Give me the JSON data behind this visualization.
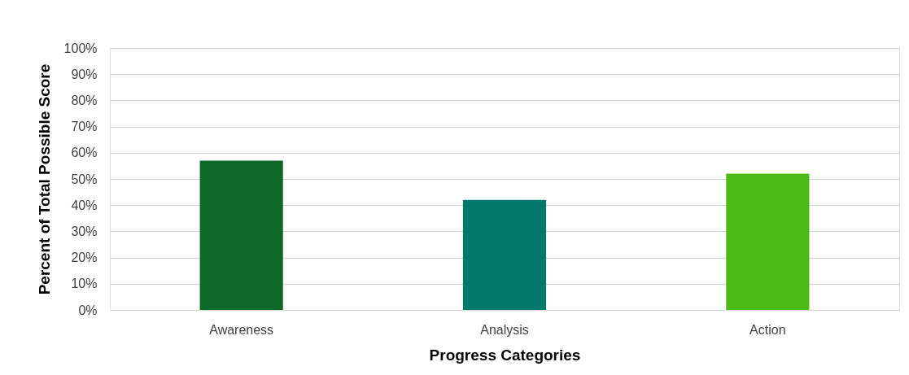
{
  "chart_data": {
    "type": "bar",
    "categories": [
      "Awareness",
      "Analysis",
      "Action"
    ],
    "values": [
      57,
      42,
      52
    ],
    "colors": [
      "#0d6727",
      "#03786d",
      "#4cbb17"
    ],
    "xlabel": "Progress Categories",
    "ylabel": "Percent of Total Possible Score",
    "ylim": [
      0,
      100
    ],
    "yticks": [
      {
        "value": 0,
        "label": "0%"
      },
      {
        "value": 10,
        "label": "10%"
      },
      {
        "value": 20,
        "label": "20%"
      },
      {
        "value": 30,
        "label": "30%"
      },
      {
        "value": 40,
        "label": "40%"
      },
      {
        "value": 50,
        "label": "50%"
      },
      {
        "value": 60,
        "label": "60%"
      },
      {
        "value": 70,
        "label": "70%"
      },
      {
        "value": 80,
        "label": "80%"
      },
      {
        "value": 90,
        "label": "90%"
      },
      {
        "value": 100,
        "label": "100%"
      }
    ],
    "grid": "y"
  }
}
